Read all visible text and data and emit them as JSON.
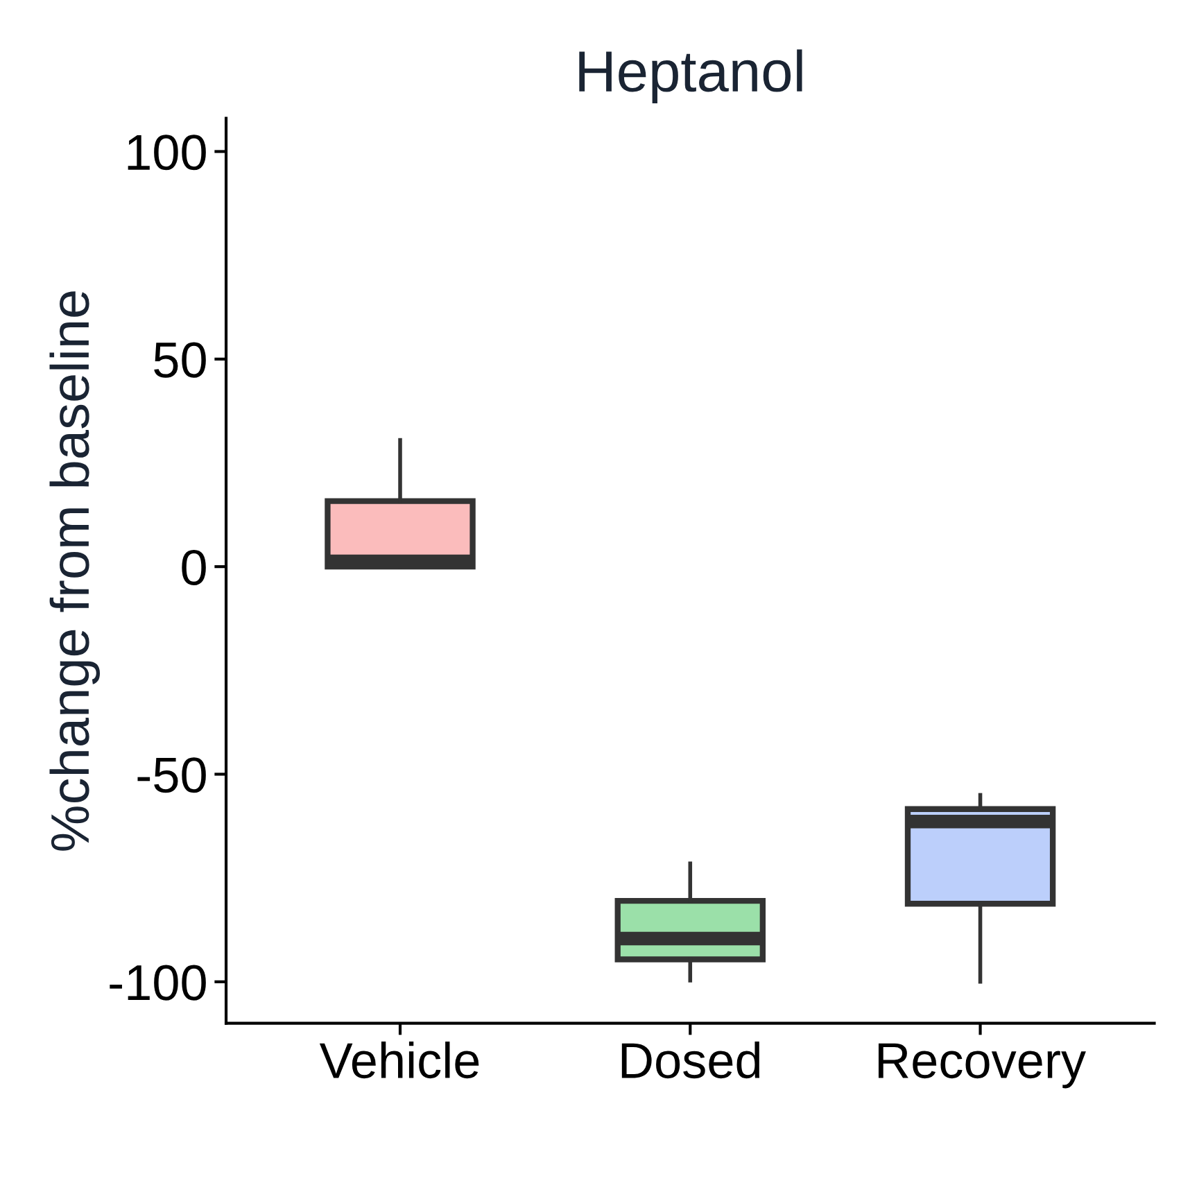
{
  "chart_data": {
    "type": "box",
    "title": "Heptanol",
    "ylabel": "%change from baseline",
    "categories": [
      "Vehicle",
      "Dosed",
      "Recovery"
    ],
    "boxes": [
      {
        "low": 0,
        "q1": 0,
        "median": 1.3,
        "q3": 15.8,
        "high": 30.5
      },
      {
        "low": -99.7,
        "q1": -94.6,
        "median": -89.6,
        "q3": -80.5,
        "high": -71.5
      },
      {
        "low": -100,
        "q1": -81.2,
        "median": -61.4,
        "q3": -58.4,
        "high": -55
      }
    ],
    "colors": [
      "#fbbcbc",
      "#9be0a9",
      "#bccffb"
    ],
    "ylim": [
      -110,
      108
    ],
    "yticks": [
      -100,
      -50,
      0,
      50,
      100
    ],
    "grid": false
  }
}
